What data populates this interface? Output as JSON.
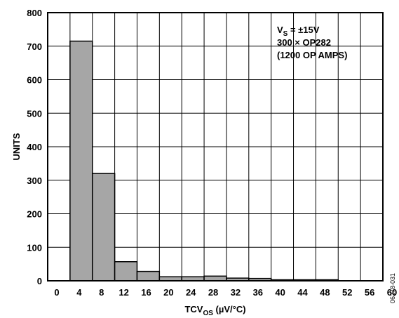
{
  "chart_data": {
    "type": "bar",
    "x_ticks": [
      "0",
      "4",
      "8",
      "12",
      "16",
      "20",
      "24",
      "28",
      "32",
      "36",
      "40",
      "44",
      "48",
      "52",
      "56",
      "60"
    ],
    "y_ticks": [
      "0",
      "100",
      "200",
      "300",
      "400",
      "500",
      "600",
      "700",
      "800"
    ],
    "xlim": [
      0,
      60
    ],
    "ylim": [
      0,
      800
    ],
    "grid": true,
    "bins": [
      {
        "from": 4,
        "to": 8,
        "value": 715
      },
      {
        "from": 8,
        "to": 12,
        "value": 320
      },
      {
        "from": 12,
        "to": 16,
        "value": 57
      },
      {
        "from": 16,
        "to": 20,
        "value": 28
      },
      {
        "from": 20,
        "to": 24,
        "value": 12
      },
      {
        "from": 24,
        "to": 28,
        "value": 12
      },
      {
        "from": 28,
        "to": 32,
        "value": 14
      },
      {
        "from": 32,
        "to": 36,
        "value": 8
      },
      {
        "from": 36,
        "to": 40,
        "value": 7
      },
      {
        "from": 40,
        "to": 44,
        "value": 3
      },
      {
        "from": 44,
        "to": 48,
        "value": 3
      },
      {
        "from": 48,
        "to": 52,
        "value": 3
      }
    ],
    "ylabel": "UNITS",
    "xlabel": {
      "main": "TCV",
      "sub": "OS",
      "unit": " (µV/°C)"
    },
    "annotation": {
      "line1_main": "V",
      "line1_sub": "S",
      "line1_rest": " = ±15V",
      "line2": "300 × OP282",
      "line3": "(1200 OP AMPS)"
    },
    "figure_id": "06278-031",
    "bar_color": "#a6a6a6"
  }
}
